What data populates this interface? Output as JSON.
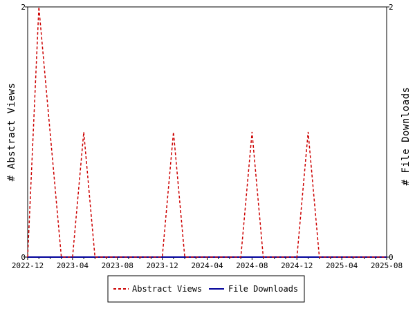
{
  "chart_data": {
    "type": "line",
    "x_range": [
      "2022-12",
      "2025-08"
    ],
    "x_ticks": [
      "2022-12",
      "2023-04",
      "2023-08",
      "2023-12",
      "2024-04",
      "2024-08",
      "2024-12",
      "2025-04",
      "2025-08"
    ],
    "y_left": {
      "label": "# Abstract Views",
      "range": [
        0,
        2
      ],
      "ticks": [
        "0",
        "2"
      ]
    },
    "y_right": {
      "label": "# File Downloads",
      "range": [
        0,
        2
      ],
      "ticks": [
        "0",
        "2"
      ]
    },
    "x_dates": [
      "2022-12-01",
      "2023-01-01",
      "2023-02-01",
      "2023-03-01",
      "2023-04-01",
      "2023-05-01",
      "2023-06-01",
      "2023-07-01",
      "2023-08-01",
      "2023-09-01",
      "2023-10-01",
      "2023-11-01",
      "2023-12-01",
      "2024-01-01",
      "2024-02-01",
      "2024-03-01",
      "2024-04-01",
      "2024-05-01",
      "2024-06-01",
      "2024-07-01",
      "2024-08-01",
      "2024-09-01",
      "2024-10-01",
      "2024-11-01",
      "2024-12-01",
      "2025-01-01",
      "2025-02-01",
      "2025-03-01",
      "2025-04-01",
      "2025-05-01",
      "2025-06-01",
      "2025-07-01",
      "2025-08-01"
    ],
    "series": [
      {
        "name": "Abstract Views",
        "color": "#cc0000",
        "dash": true,
        "axis": "left",
        "values": [
          0,
          2,
          1,
          0,
          0,
          1,
          0,
          0,
          0,
          0,
          0,
          0,
          0,
          1,
          0,
          0,
          0,
          0,
          0,
          0,
          1,
          0,
          0,
          0,
          0,
          1,
          0,
          0,
          0,
          0,
          0,
          0,
          0
        ]
      },
      {
        "name": "File Downloads",
        "color": "#000099",
        "dash": false,
        "axis": "right",
        "values": [
          0,
          0,
          0,
          0,
          0,
          0,
          0,
          0,
          0,
          0,
          0,
          0,
          0,
          0,
          0,
          0,
          0,
          0,
          0,
          0,
          0,
          0,
          0,
          0,
          0,
          0,
          0,
          0,
          0,
          0,
          0,
          0,
          0
        ]
      }
    ],
    "legend_position": "bottom"
  },
  "legend": {
    "items": [
      "Abstract Views",
      "File Downloads"
    ]
  }
}
